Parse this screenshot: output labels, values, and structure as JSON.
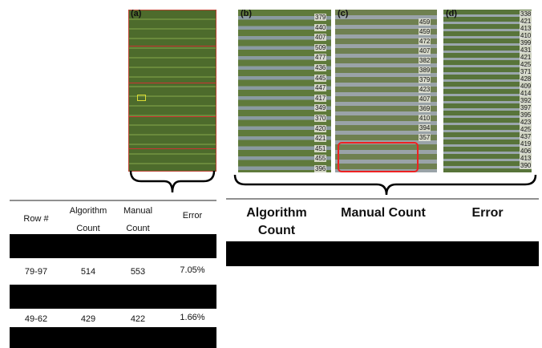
{
  "figure": {
    "panels": [
      {
        "label": "(a)",
        "row_counts": []
      },
      {
        "label": "(b)",
        "row_counts": [
          "379",
          "440",
          "407",
          "509",
          "477",
          "436",
          "445",
          "447",
          "417",
          "349",
          "370",
          "420",
          "421",
          "451",
          "455",
          "396"
        ]
      },
      {
        "label": "(c)",
        "row_counts": [
          "459",
          "459",
          "472",
          "407",
          "382",
          "389",
          "379",
          "423",
          "407",
          "369",
          "410",
          "394",
          "357"
        ]
      },
      {
        "label": "(d)",
        "row_counts": [
          "338",
          "421",
          "413",
          "410",
          "399",
          "431",
          "421",
          "425",
          "371",
          "428",
          "409",
          "414",
          "392",
          "397",
          "395",
          "423",
          "425",
          "437",
          "419",
          "406",
          "413",
          "390"
        ]
      }
    ]
  },
  "left_table": {
    "header": [
      "Row #",
      "Algorithm Count",
      "Manual Count",
      "Error"
    ],
    "rows": [
      [
        "79-97",
        "514",
        "553",
        "7.05%"
      ],
      [
        "49-62",
        "429",
        "422",
        "1.66%"
      ]
    ]
  },
  "right_table": {
    "header": [
      "Algorithm Count",
      "Manual Count",
      "Error"
    ]
  }
}
